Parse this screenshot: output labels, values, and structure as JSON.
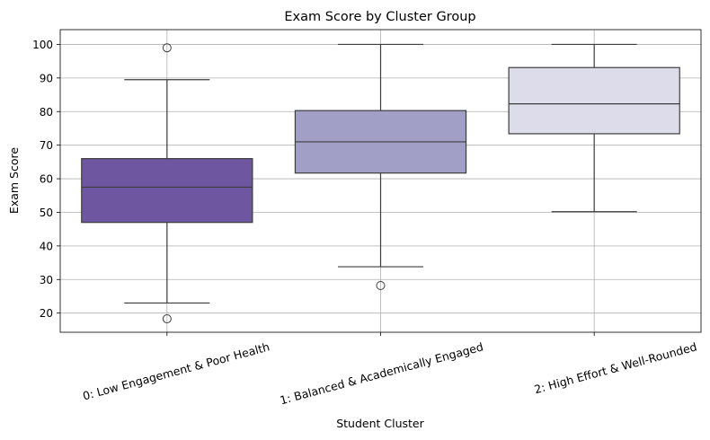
{
  "chart_data": {
    "type": "box",
    "title": "Exam Score by Cluster Group",
    "xlabel": "Student Cluster",
    "ylabel": "Exam Score",
    "ylim": [
      14.3,
      104.4
    ],
    "yticks": [
      20,
      30,
      40,
      50,
      60,
      70,
      80,
      90,
      100
    ],
    "grid": true,
    "boxes": [
      {
        "label": "0: Low Engagement & Poor Health",
        "color": "#6e57a0",
        "whisker_low": 23,
        "q1": 47,
        "median": 57.5,
        "q3": 66,
        "whisker_high": 89.5,
        "outliers": [
          99,
          18.3
        ]
      },
      {
        "label": "1: Balanced & Academically Engaged",
        "color": "#a29fc6",
        "whisker_low": 33.8,
        "q1": 61.7,
        "median": 71,
        "q3": 80.3,
        "whisker_high": 100,
        "outliers": [
          28.2
        ]
      },
      {
        "label": "2: High Effort & Well-Rounded",
        "color": "#dddcea",
        "whisker_low": 50.2,
        "q1": 73.4,
        "median": 82.3,
        "q3": 93.1,
        "whisker_high": 100,
        "outliers": []
      }
    ]
  }
}
